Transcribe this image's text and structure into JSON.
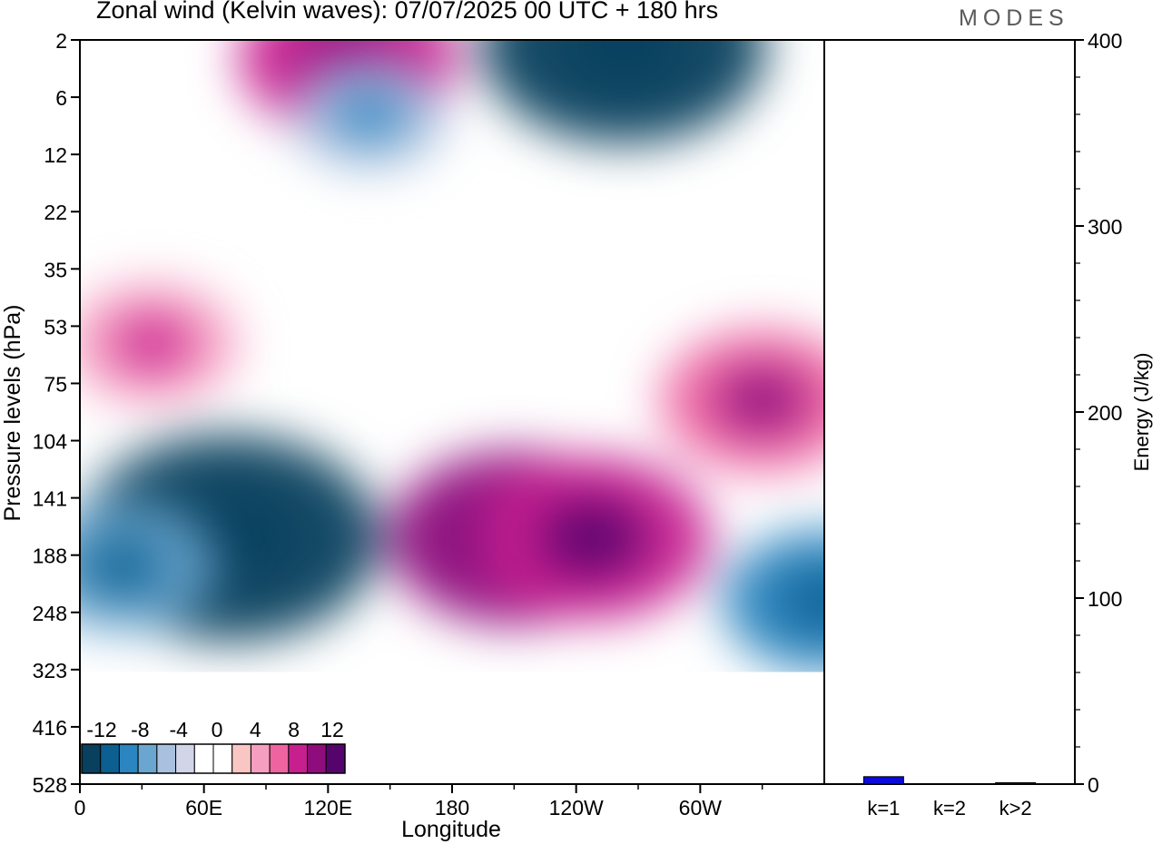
{
  "header": {
    "title": "Zonal wind (Kelvin waves):  07/07/2025  00 UTC  + 180 hrs",
    "brand": "MODES"
  },
  "colors": {
    "scale": [
      "#08405e",
      "#0b5f91",
      "#2a85c0",
      "#6aa6d0",
      "#a9c1de",
      "#d2d5e8",
      "#ffffff",
      "#ffffff",
      "#f9c6c4",
      "#f59ec0",
      "#ee64a0",
      "#c81f8f",
      "#8f0c7d",
      "#55046e"
    ],
    "energy_bar": "#0a0adc"
  },
  "chart_data": [
    {
      "type": "heatmap",
      "title": "Zonal wind (Kelvin waves):  07/07/2025  00 UTC  + 180 hrs",
      "xlabel": "Longitude",
      "ylabel": "Pressure levels (hPa)",
      "x_ticks": [
        "0",
        "60E",
        "120E",
        "180",
        "120W",
        "60W"
      ],
      "y_ticks": [
        "2",
        "6",
        "12",
        "22",
        "35",
        "53",
        "75",
        "104",
        "141",
        "188",
        "248",
        "323",
        "416",
        "528"
      ],
      "legend_labels": [
        "-12",
        "-8",
        "-4",
        "0",
        "4",
        "8",
        "12"
      ],
      "legend_placement": "bottom-left",
      "features": [
        {
          "lon": 72,
          "lev": 8.7,
          "value": -14
        },
        {
          "lon": 20,
          "lev": 9.2,
          "value": -7
        },
        {
          "lon": 360,
          "lev": 9.8,
          "value": -8
        },
        {
          "lon": 130,
          "lev": 0.3,
          "value": 9
        },
        {
          "lon": 263,
          "lev": 0.1,
          "value": -13
        },
        {
          "lon": 210,
          "lev": 8.7,
          "value": 11
        },
        {
          "lon": 248,
          "lev": 8.7,
          "value": 10
        },
        {
          "lon": 330,
          "lev": 6.3,
          "value": 8
        },
        {
          "lon": 35,
          "lev": 5.3,
          "value": 6
        },
        {
          "lon": 140,
          "lev": 1.3,
          "value": -5
        }
      ]
    },
    {
      "type": "bar",
      "categories": [
        "k=1",
        "k=2",
        "k>2"
      ],
      "values": [
        4,
        0,
        0.5
      ],
      "ylabel": "Energy (J/kg)",
      "ylim": [
        0,
        400
      ],
      "y_ticks": [
        "0",
        "100",
        "200",
        "300",
        "400"
      ]
    }
  ]
}
